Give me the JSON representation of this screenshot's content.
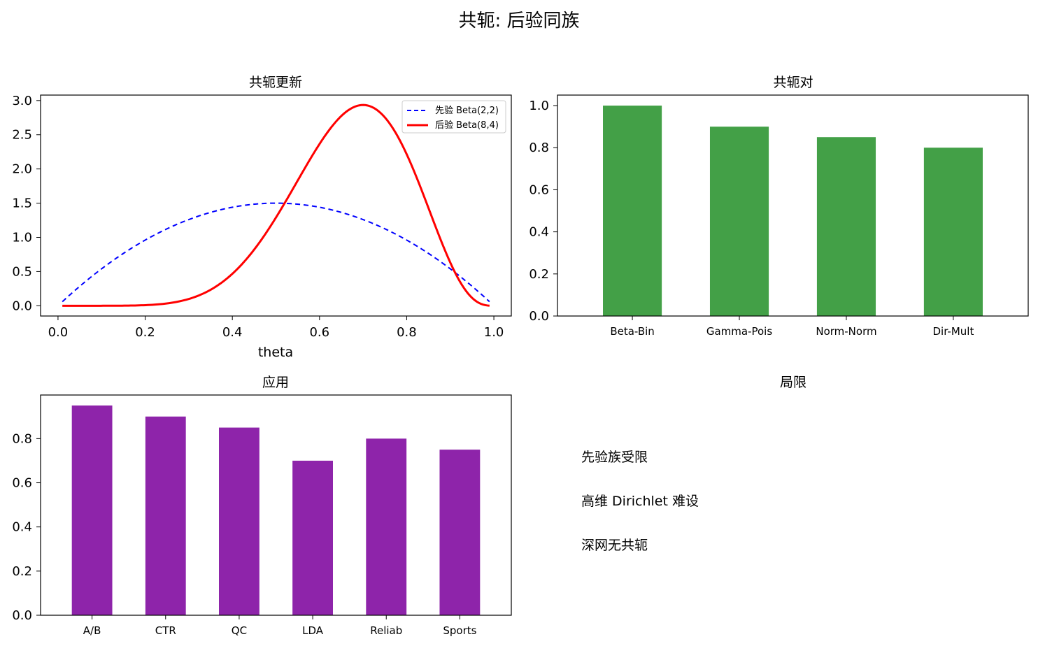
{
  "figure_title": "共轭: 后验同族",
  "colors": {
    "prior": "#0000ff",
    "posterior": "#ff0000",
    "pairs_bar": "#43a047",
    "apps_bar": "#8e24aa"
  },
  "chart_data": [
    {
      "id": "update",
      "type": "line",
      "title": "共轭更新",
      "xlabel": "theta",
      "ylabel": "",
      "xlim": [
        -0.04,
        1.04
      ],
      "ylim": [
        -0.15,
        3.08
      ],
      "xticks": [
        "0.0",
        "0.2",
        "0.4",
        "0.6",
        "0.8",
        "1.0"
      ],
      "yticks": [
        "0.0",
        "0.5",
        "1.0",
        "1.5",
        "2.0",
        "2.5",
        "3.0"
      ],
      "legend_position": "upper right",
      "series": [
        {
          "name": "先验 Beta(2,2)",
          "dist": "beta",
          "a": 2,
          "b": 2,
          "style": "dashed",
          "color": "#0000ff"
        },
        {
          "name": "后验 Beta(8,4)",
          "dist": "beta",
          "a": 8,
          "b": 4,
          "style": "solid",
          "color": "#ff0000"
        }
      ],
      "x_range": [
        0.01,
        0.99
      ]
    },
    {
      "id": "pairs",
      "type": "bar",
      "title": "共轭对",
      "categories": [
        "Beta-Bin",
        "Gamma-Pois",
        "Norm-Norm",
        "Dir-Mult"
      ],
      "values": [
        1.0,
        0.9,
        0.85,
        0.8
      ],
      "ylim": [
        0,
        1.05
      ],
      "yticks": [
        "0.0",
        "0.2",
        "0.4",
        "0.6",
        "0.8",
        "1.0"
      ],
      "color": "#43a047"
    },
    {
      "id": "apps",
      "type": "bar",
      "title": "应用",
      "categories": [
        "A/B",
        "CTR",
        "QC",
        "LDA",
        "Reliab",
        "Sports"
      ],
      "values": [
        0.95,
        0.9,
        0.85,
        0.7,
        0.8,
        0.75
      ],
      "ylim": [
        0,
        0.9975
      ],
      "yticks": [
        "0.0",
        "0.2",
        "0.4",
        "0.6",
        "0.8"
      ],
      "color": "#8e24aa"
    }
  ],
  "limits": {
    "title": "局限",
    "items": [
      "先验族受限",
      "高维 Dirichlet 难设",
      "深网无共轭"
    ]
  }
}
